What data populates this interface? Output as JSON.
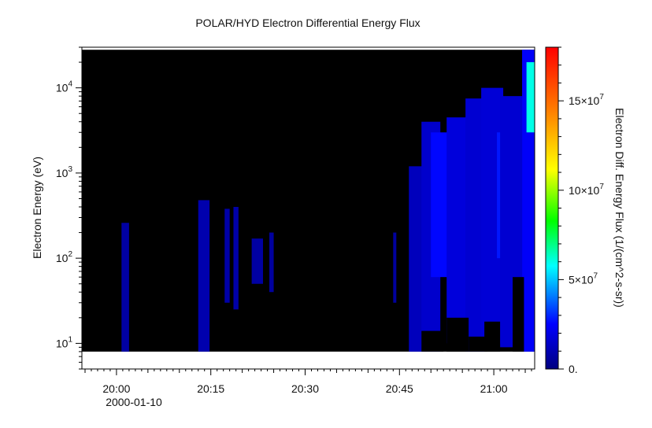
{
  "chart_data": {
    "type": "heatmap",
    "title": "POLAR/HYD  Electron Differential Energy Flux",
    "xlabel": "",
    "ylabel": "Electron Energy (eV)",
    "x_axis": {
      "start_label": "2000-01-10",
      "range_minutes": [
        -5.5,
        66.5
      ],
      "ticks": [
        {
          "minute": 0,
          "label": "20:00"
        },
        {
          "minute": 15,
          "label": "20:15"
        },
        {
          "minute": 30,
          "label": "20:30"
        },
        {
          "minute": 45,
          "label": "20:45"
        },
        {
          "minute": 60,
          "label": "21:00"
        }
      ],
      "minor_tick_step_minutes": 1
    },
    "y_axis": {
      "scale": "log",
      "range_ev": [
        5,
        30000
      ],
      "data_range_ev": [
        8,
        28000
      ],
      "ticks": [
        {
          "value": 10,
          "base": "10",
          "exp": "1"
        },
        {
          "value": 100,
          "base": "10",
          "exp": "2"
        },
        {
          "value": 1000,
          "base": "10",
          "exp": "3"
        },
        {
          "value": 10000,
          "base": "10",
          "exp": "4"
        }
      ]
    },
    "colorbar": {
      "label": "Electron Diff. Energy Flux (1/(cm^2-s-sr))",
      "range": [
        0,
        180000000
      ],
      "ticks": [
        {
          "value": 0,
          "label": "0.",
          "exp": ""
        },
        {
          "value": 50000000,
          "label": "5×10",
          "exp": "7"
        },
        {
          "value": 100000000,
          "label": "10×10",
          "exp": "7"
        },
        {
          "value": 150000000,
          "label": "15×10",
          "exp": "7"
        }
      ]
    },
    "background_color": "#000000",
    "grid": false,
    "flux_regions": [
      {
        "t0": 0.8,
        "t1": 2.0,
        "emin": 8,
        "emax": 260,
        "flux": 7000000
      },
      {
        "t0": 13.0,
        "t1": 14.8,
        "emin": 8,
        "emax": 480,
        "flux": 9000000
      },
      {
        "t0": 17.2,
        "t1": 18.0,
        "emin": 30,
        "emax": 380,
        "flux": 8000000
      },
      {
        "t0": 18.6,
        "t1": 19.4,
        "emin": 25,
        "emax": 400,
        "flux": 8000000
      },
      {
        "t0": 21.5,
        "t1": 23.3,
        "emin": 50,
        "emax": 170,
        "flux": 7000000
      },
      {
        "t0": 24.3,
        "t1": 25.0,
        "emin": 40,
        "emax": 200,
        "flux": 6000000
      },
      {
        "t0": 44.0,
        "t1": 44.5,
        "emin": 30,
        "emax": 200,
        "flux": 6000000
      },
      {
        "t0": 46.5,
        "t1": 49.0,
        "emin": 8,
        "emax": 1200,
        "flux": 12000000
      },
      {
        "t0": 48.5,
        "t1": 51.5,
        "emin": 8,
        "emax": 4000,
        "flux": 15000000
      },
      {
        "t0": 50.0,
        "t1": 53.0,
        "emin": 60,
        "emax": 3000,
        "flux": 26000000
      },
      {
        "t0": 52.5,
        "t1": 56.0,
        "emin": 10,
        "emax": 4500,
        "flux": 18000000
      },
      {
        "t0": 55.5,
        "t1": 58.5,
        "emin": 8,
        "emax": 7500,
        "flux": 16000000
      },
      {
        "t0": 58.0,
        "t1": 61.5,
        "emin": 10,
        "emax": 10000,
        "flux": 17000000
      },
      {
        "t0": 60.5,
        "t1": 62.5,
        "emin": 100,
        "emax": 3000,
        "flux": 28000000
      },
      {
        "t0": 61.0,
        "t1": 64.5,
        "emin": 9,
        "emax": 8000,
        "flux": 16000000
      },
      {
        "t0": 64.5,
        "t1": 66.5,
        "emin": 8,
        "emax": 28000,
        "flux": 24000000
      },
      {
        "t0": 65.2,
        "t1": 66.5,
        "emin": 3000,
        "emax": 20000,
        "flux": 60000000
      }
    ],
    "gap_regions": [
      {
        "t0": 48.5,
        "t1": 52.0,
        "emin": 8,
        "emax": 14
      },
      {
        "t0": 52.5,
        "t1": 56.0,
        "emin": 8,
        "emax": 20
      },
      {
        "t0": 56.0,
        "t1": 59.0,
        "emin": 8,
        "emax": 12
      },
      {
        "t0": 63.0,
        "t1": 64.8,
        "emin": 8,
        "emax": 60
      },
      {
        "t0": 58.5,
        "t1": 61.0,
        "emin": 8,
        "emax": 18
      }
    ]
  }
}
